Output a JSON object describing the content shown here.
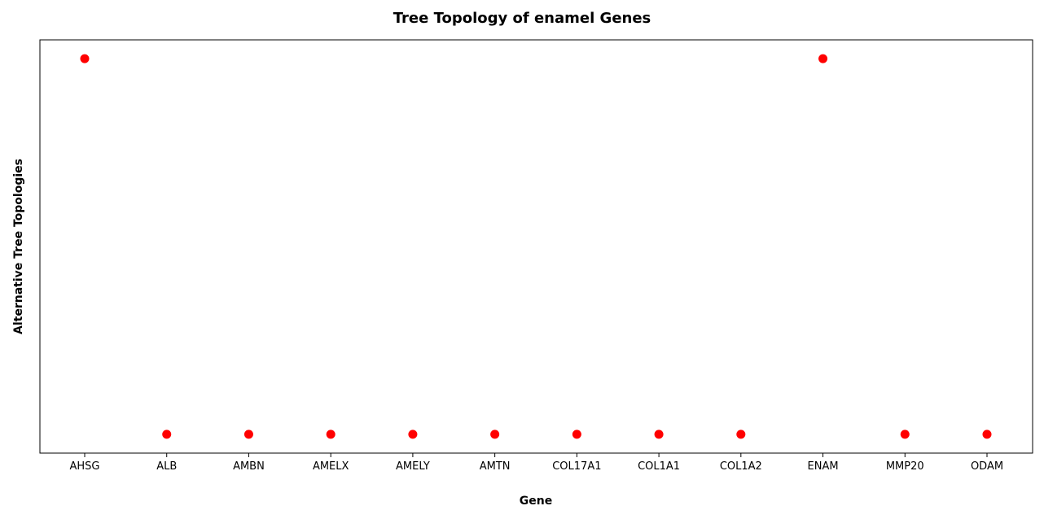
{
  "chart_data": {
    "type": "scatter",
    "title": "Tree Topology of enamel Genes",
    "xlabel": "Gene",
    "ylabel": "Alternative Tree Topologies",
    "categories": [
      "AHSG",
      "ALB",
      "AMBN",
      "AMELX",
      "AMELY",
      "AMTN",
      "COL17A1",
      "COL1A1",
      "COL1A2",
      "ENAM",
      "MMP20",
      "ODAM"
    ],
    "values": [
      1,
      0,
      0,
      0,
      0,
      0,
      0,
      0,
      0,
      1,
      0,
      0
    ],
    "ylim": [
      -0.05,
      1.05
    ],
    "grid": false,
    "legend": "none",
    "colors": {
      "marker": "#ff0000",
      "axes": "#000000"
    }
  }
}
